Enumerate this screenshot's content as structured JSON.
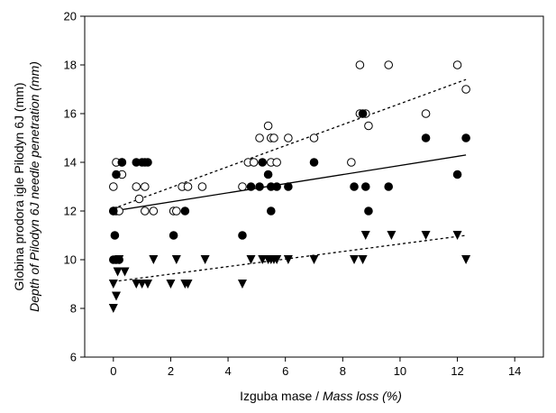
{
  "chart_data": {
    "type": "scatter",
    "title": "",
    "xlabel_plain": "Izguba mase / ",
    "xlabel_italic": "Mass loss (%)",
    "ylabel_line1": "Globina prodora igle Pilodyn 6J (mm)",
    "ylabel_line2": "Depth of Pilodyn 6J needle penetration (mm)",
    "xlim": [
      -1,
      15
    ],
    "ylim": [
      6,
      20
    ],
    "x_ticks": [
      0,
      2,
      4,
      6,
      8,
      10,
      12,
      14
    ],
    "y_ticks": [
      6,
      8,
      10,
      12,
      14,
      16,
      18,
      20
    ],
    "x_tick_labels": [
      "0",
      "2",
      "4",
      "6",
      "8",
      "10",
      "12",
      "14"
    ],
    "y_tick_labels": [
      "6",
      "8",
      "10",
      "12",
      "14",
      "16",
      "18",
      "20"
    ],
    "grid": false,
    "series": [
      {
        "marker": "open-circle",
        "points": [
          [
            0,
            13
          ],
          [
            0.1,
            14
          ],
          [
            0.3,
            14
          ],
          [
            0.3,
            13.5
          ],
          [
            0,
            12
          ],
          [
            0.1,
            12
          ],
          [
            0.2,
            12
          ],
          [
            0.8,
            13
          ],
          [
            0.9,
            12.5
          ],
          [
            1.1,
            12
          ],
          [
            1.1,
            13
          ],
          [
            1.4,
            12
          ],
          [
            2.1,
            12
          ],
          [
            2.2,
            12
          ],
          [
            2.4,
            13
          ],
          [
            2.6,
            13
          ],
          [
            3.1,
            13
          ],
          [
            4.5,
            13
          ],
          [
            4.7,
            14
          ],
          [
            4.9,
            14
          ],
          [
            5.1,
            15
          ],
          [
            5.4,
            15.5
          ],
          [
            5.5,
            15
          ],
          [
            5.5,
            14
          ],
          [
            5.6,
            15
          ],
          [
            5.7,
            14
          ],
          [
            6.1,
            15
          ],
          [
            7,
            15
          ],
          [
            8.3,
            14
          ],
          [
            8.6,
            18
          ],
          [
            8.6,
            16
          ],
          [
            8.8,
            16
          ],
          [
            8.9,
            15.5
          ],
          [
            9.6,
            18
          ],
          [
            10.9,
            16
          ],
          [
            12,
            18
          ],
          [
            12.3,
            17
          ]
        ],
        "trend": {
          "x": [
            0,
            12.3
          ],
          "y": [
            12.1,
            17.4
          ],
          "style": "dotted"
        }
      },
      {
        "marker": "filled-circle",
        "points": [
          [
            0,
            12
          ],
          [
            0.05,
            11
          ],
          [
            0,
            10
          ],
          [
            0.1,
            10
          ],
          [
            0.2,
            10
          ],
          [
            0.1,
            13.5
          ],
          [
            0.3,
            14
          ],
          [
            0.8,
            14
          ],
          [
            1,
            14
          ],
          [
            1.1,
            14
          ],
          [
            1.2,
            14
          ],
          [
            2.1,
            11
          ],
          [
            2.5,
            12
          ],
          [
            4.5,
            11
          ],
          [
            4.8,
            13
          ],
          [
            5.1,
            13
          ],
          [
            5.2,
            14
          ],
          [
            5.4,
            13.5
          ],
          [
            5.5,
            12
          ],
          [
            5.5,
            13
          ],
          [
            5.7,
            13
          ],
          [
            6.1,
            13
          ],
          [
            7,
            14
          ],
          [
            8.4,
            13
          ],
          [
            8.7,
            16
          ],
          [
            8.8,
            13
          ],
          [
            8.9,
            12
          ],
          [
            9.6,
            13
          ],
          [
            10.9,
            15
          ],
          [
            12,
            13.5
          ],
          [
            12.3,
            15
          ]
        ],
        "trend": {
          "x": [
            0,
            12.3
          ],
          "y": [
            12.0,
            14.3
          ],
          "style": "solid"
        }
      },
      {
        "marker": "filled-triangle-down",
        "points": [
          [
            0,
            8
          ],
          [
            0,
            9
          ],
          [
            0.1,
            8.5
          ],
          [
            0.15,
            9.5
          ],
          [
            0.2,
            10
          ],
          [
            0.4,
            9.5
          ],
          [
            0.8,
            9
          ],
          [
            1,
            9
          ],
          [
            1.2,
            9
          ],
          [
            1.4,
            10
          ],
          [
            2,
            9
          ],
          [
            2.2,
            10
          ],
          [
            2.5,
            9
          ],
          [
            2.6,
            9
          ],
          [
            3.2,
            10
          ],
          [
            4.5,
            9
          ],
          [
            4.8,
            10
          ],
          [
            5.2,
            10
          ],
          [
            5.4,
            10
          ],
          [
            5.5,
            10
          ],
          [
            5.6,
            10
          ],
          [
            5.7,
            10
          ],
          [
            6.1,
            10
          ],
          [
            7,
            10
          ],
          [
            8.4,
            10
          ],
          [
            8.7,
            10
          ],
          [
            8.8,
            11
          ],
          [
            9.7,
            11
          ],
          [
            10.9,
            11
          ],
          [
            12,
            11
          ],
          [
            12.3,
            10
          ]
        ],
        "trend": {
          "x": [
            0,
            12.3
          ],
          "y": [
            9.1,
            11.0
          ],
          "style": "dotted"
        }
      }
    ]
  }
}
